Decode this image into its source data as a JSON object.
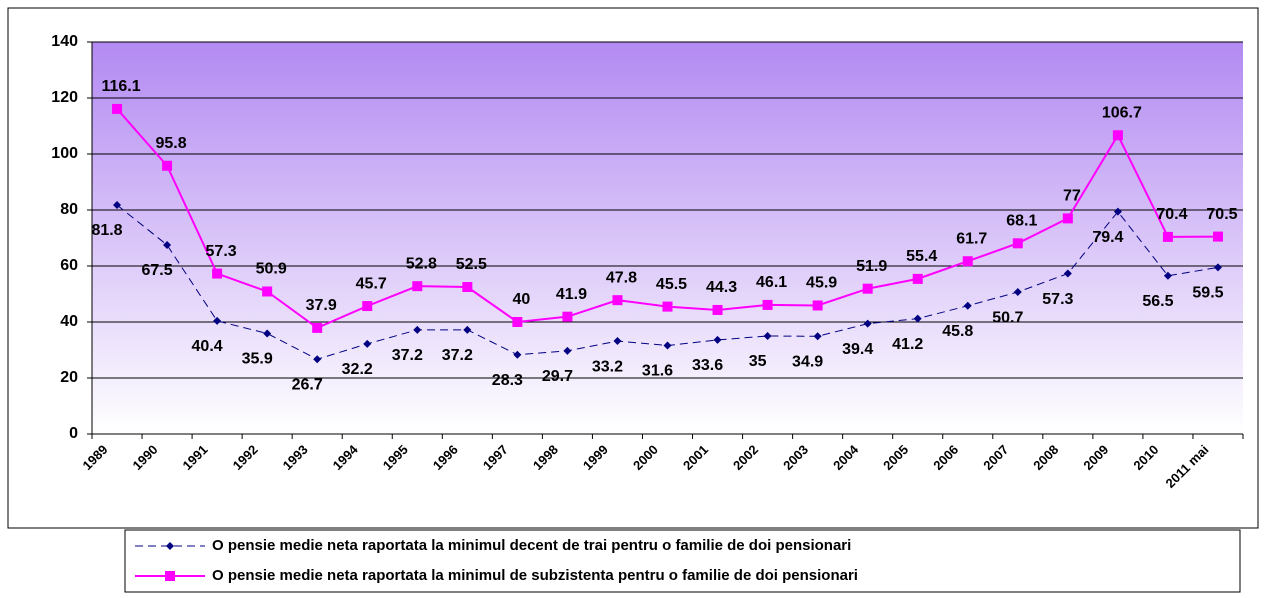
{
  "chart_data": {
    "type": "line",
    "categories": [
      "1989",
      "1990",
      "1991",
      "1992",
      "1993",
      "1994",
      "1995",
      "1996",
      "1997",
      "1998",
      "1999",
      "2000",
      "2001",
      "2002",
      "2003",
      "2004",
      "2005",
      "2006",
      "2007",
      "2008",
      "2009",
      "2010",
      "2011 mai"
    ],
    "series": [
      {
        "name": "O pensie medie neta raportata la minimul decent de trai pentru o familie de doi pensionari",
        "color": "#000080",
        "marker": "diamond",
        "dashed": true,
        "values": [
          81.8,
          67.5,
          40.4,
          35.9,
          26.7,
          32.2,
          37.2,
          37.2,
          28.3,
          29.7,
          33.2,
          31.6,
          33.6,
          35,
          34.9,
          39.4,
          41.2,
          45.8,
          50.7,
          57.3,
          79.4,
          56.5,
          59.5
        ]
      },
      {
        "name": "O pensie medie neta raportata la minimul de subzistenta pentru o familie de doi pensionari",
        "color": "#ff00ff",
        "marker": "square",
        "dashed": false,
        "values": [
          116.1,
          95.8,
          57.3,
          50.9,
          37.9,
          45.7,
          52.8,
          52.5,
          40,
          41.9,
          47.8,
          45.5,
          44.3,
          46.1,
          45.9,
          51.9,
          55.4,
          61.7,
          68.1,
          77,
          106.7,
          70.4,
          70.5
        ]
      }
    ],
    "ylim": [
      0,
      140
    ],
    "yticks": [
      0,
      20,
      40,
      60,
      80,
      100,
      120,
      140
    ],
    "grid": true,
    "legend": "bottom"
  }
}
